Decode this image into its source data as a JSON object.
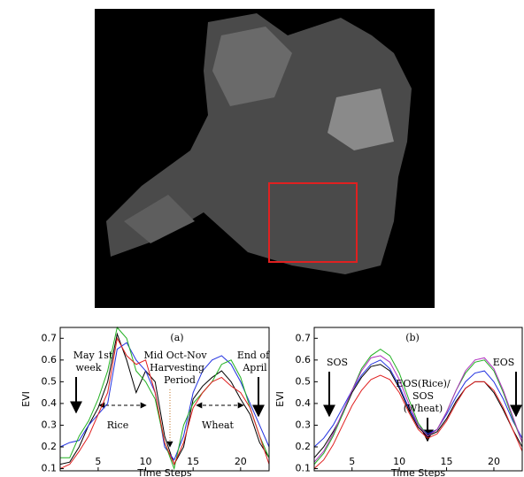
{
  "chart_data": [
    {
      "type": "line",
      "title": "(a)",
      "ylabel": "EVI",
      "xlabel": "Time Steps",
      "xlim": [
        1,
        23
      ],
      "ylim": [
        0.09,
        0.75
      ],
      "xticks": [
        5,
        10,
        15,
        20
      ],
      "yticks": [
        0.1,
        0.2,
        0.3,
        0.4,
        0.5,
        0.6,
        0.7
      ],
      "annotations": [
        "May 1st",
        "week",
        "Rice",
        "Mid Oct-Nov",
        "Harvesting",
        "Period",
        "End of",
        "April",
        "Wheat"
      ],
      "x": [
        1,
        2,
        3,
        4,
        5,
        6,
        7,
        8,
        9,
        10,
        11,
        12,
        13,
        14,
        15,
        16,
        17,
        18,
        19,
        20,
        21,
        22,
        23
      ],
      "series": [
        {
          "color": "#000000",
          "values": [
            0.12,
            0.13,
            0.2,
            0.3,
            0.38,
            0.5,
            0.72,
            0.6,
            0.45,
            0.55,
            0.5,
            0.25,
            0.12,
            0.2,
            0.42,
            0.48,
            0.52,
            0.55,
            0.5,
            0.42,
            0.35,
            0.22,
            0.15
          ]
        },
        {
          "color": "#2030e0",
          "values": [
            0.2,
            0.22,
            0.23,
            0.3,
            0.35,
            0.4,
            0.65,
            0.68,
            0.6,
            0.55,
            0.45,
            0.2,
            0.14,
            0.25,
            0.45,
            0.55,
            0.6,
            0.62,
            0.58,
            0.5,
            0.4,
            0.3,
            0.2
          ]
        },
        {
          "color": "#20b020",
          "values": [
            0.15,
            0.15,
            0.25,
            0.32,
            0.42,
            0.55,
            0.75,
            0.7,
            0.55,
            0.5,
            0.42,
            0.22,
            0.1,
            0.3,
            0.4,
            0.45,
            0.5,
            0.58,
            0.6,
            0.52,
            0.38,
            0.25,
            0.15
          ]
        },
        {
          "color": "#e02020",
          "values": [
            0.1,
            0.12,
            0.18,
            0.25,
            0.35,
            0.45,
            0.7,
            0.62,
            0.58,
            0.6,
            0.45,
            0.22,
            0.12,
            0.22,
            0.38,
            0.45,
            0.5,
            0.52,
            0.48,
            0.45,
            0.38,
            0.25,
            0.12
          ]
        }
      ]
    },
    {
      "type": "line",
      "title": "(b)",
      "ylabel": "EVI",
      "xlabel": "Time Steps",
      "xlim": [
        1,
        23
      ],
      "ylim": [
        0.09,
        0.75
      ],
      "xticks": [
        5,
        10,
        15,
        20
      ],
      "yticks": [
        0.1,
        0.2,
        0.3,
        0.4,
        0.5,
        0.6,
        0.7
      ],
      "annotations": [
        "SOS",
        "EOS(Rice)/",
        "SOS",
        "(Wheat)",
        "EOS"
      ],
      "x": [
        1,
        2,
        3,
        4,
        5,
        6,
        7,
        8,
        9,
        10,
        11,
        12,
        13,
        14,
        15,
        16,
        17,
        18,
        19,
        20,
        21,
        22,
        23
      ],
      "series": [
        {
          "color": "#000000",
          "values": [
            0.15,
            0.2,
            0.27,
            0.35,
            0.45,
            0.52,
            0.57,
            0.58,
            0.55,
            0.47,
            0.37,
            0.29,
            0.25,
            0.27,
            0.33,
            0.41,
            0.47,
            0.5,
            0.5,
            0.45,
            0.37,
            0.28,
            0.2
          ]
        },
        {
          "color": "#2030e0",
          "values": [
            0.2,
            0.24,
            0.3,
            0.38,
            0.46,
            0.53,
            0.58,
            0.6,
            0.56,
            0.48,
            0.38,
            0.3,
            0.26,
            0.28,
            0.35,
            0.43,
            0.5,
            0.54,
            0.55,
            0.5,
            0.42,
            0.32,
            0.24
          ]
        },
        {
          "color": "#20b020",
          "values": [
            0.12,
            0.17,
            0.25,
            0.35,
            0.46,
            0.56,
            0.62,
            0.65,
            0.62,
            0.54,
            0.42,
            0.31,
            0.25,
            0.28,
            0.36,
            0.46,
            0.54,
            0.59,
            0.6,
            0.55,
            0.45,
            0.33,
            0.22
          ]
        },
        {
          "color": "#e02020",
          "values": [
            0.1,
            0.14,
            0.21,
            0.3,
            0.39,
            0.46,
            0.51,
            0.53,
            0.51,
            0.45,
            0.36,
            0.28,
            0.24,
            0.26,
            0.32,
            0.4,
            0.47,
            0.5,
            0.5,
            0.46,
            0.38,
            0.28,
            0.18
          ]
        },
        {
          "color": "#b030c0",
          "values": [
            0.13,
            0.18,
            0.26,
            0.36,
            0.46,
            0.55,
            0.61,
            0.62,
            0.59,
            0.51,
            0.4,
            0.3,
            0.25,
            0.28,
            0.36,
            0.46,
            0.55,
            0.6,
            0.61,
            0.56,
            0.46,
            0.34,
            0.22
          ]
        }
      ]
    }
  ]
}
